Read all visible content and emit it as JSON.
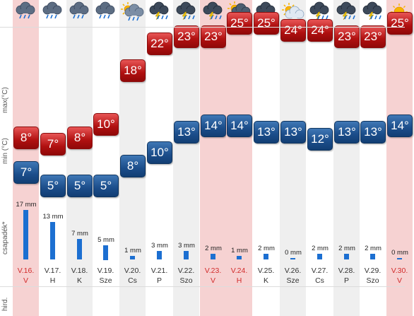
{
  "labels": {
    "max": "max(°C)",
    "min": "min (°C)",
    "rain": "csapadék*",
    "hird": "hird."
  },
  "days": [
    {
      "date": "V.16.",
      "dow": "V",
      "icon": "rain-cloud-icon",
      "max": "8°",
      "min": "7°",
      "rain": "17 mm",
      "rain_mm": 17,
      "weekend": true
    },
    {
      "date": "V.17.",
      "dow": "H",
      "icon": "rain-cloud-icon",
      "max": "7°",
      "min": "5°",
      "rain": "13 mm",
      "rain_mm": 13,
      "weekend": false
    },
    {
      "date": "V.18.",
      "dow": "K",
      "icon": "rain-cloud-icon",
      "max": "8°",
      "min": "5°",
      "rain": "7 mm",
      "rain_mm": 7,
      "weekend": false
    },
    {
      "date": "V.19.",
      "dow": "Sze",
      "icon": "rain-cloud-icon",
      "max": "10°",
      "min": "5°",
      "rain": "5 mm",
      "rain_mm": 5,
      "weekend": false
    },
    {
      "date": "V.20.",
      "dow": "Cs",
      "icon": "sun-cloud-rain-icon",
      "max": "18°",
      "min": "8°",
      "rain": "1 mm",
      "rain_mm": 1,
      "weekend": false
    },
    {
      "date": "V.21.",
      "dow": "P",
      "icon": "thunderstorm-icon",
      "max": "22°",
      "min": "10°",
      "rain": "3 mm",
      "rain_mm": 3,
      "weekend": false
    },
    {
      "date": "V.22.",
      "dow": "Szo",
      "icon": "thunderstorm-icon",
      "max": "23°",
      "min": "13°",
      "rain": "3 mm",
      "rain_mm": 3,
      "weekend": false
    },
    {
      "date": "V.23.",
      "dow": "V",
      "icon": "thunderstorm-icon",
      "max": "23°",
      "min": "14°",
      "rain": "2 mm",
      "rain_mm": 2,
      "weekend": true
    },
    {
      "date": "V.24.",
      "dow": "H",
      "icon": "sun-cloud-storm-icon",
      "max": "25°",
      "min": "14°",
      "rain": "1 mm",
      "rain_mm": 1,
      "weekend": true
    },
    {
      "date": "V.25.",
      "dow": "K",
      "icon": "thunderstorm-icon",
      "max": "25°",
      "min": "13°",
      "rain": "2 mm",
      "rain_mm": 2,
      "weekend": false
    },
    {
      "date": "V.26.",
      "dow": "Sze",
      "icon": "sun-cloud-icon",
      "max": "24°",
      "min": "13°",
      "rain": "0 mm",
      "rain_mm": 0,
      "weekend": false
    },
    {
      "date": "V.27.",
      "dow": "Cs",
      "icon": "thunderstorm-icon",
      "max": "24°",
      "min": "12°",
      "rain": "2 mm",
      "rain_mm": 2,
      "weekend": false
    },
    {
      "date": "V.28.",
      "dow": "P",
      "icon": "thunderstorm-icon",
      "max": "23°",
      "min": "13°",
      "rain": "2 mm",
      "rain_mm": 2,
      "weekend": false
    },
    {
      "date": "V.29.",
      "dow": "Szo",
      "icon": "thunderstorm-icon",
      "max": "23°",
      "min": "13°",
      "rain": "2 mm",
      "rain_mm": 2,
      "weekend": false
    },
    {
      "date": "V.30.",
      "dow": "V",
      "icon": "sun-icon",
      "max": "25°",
      "min": "14°",
      "rain": "0 mm",
      "rain_mm": 0,
      "weekend": true
    }
  ]
}
